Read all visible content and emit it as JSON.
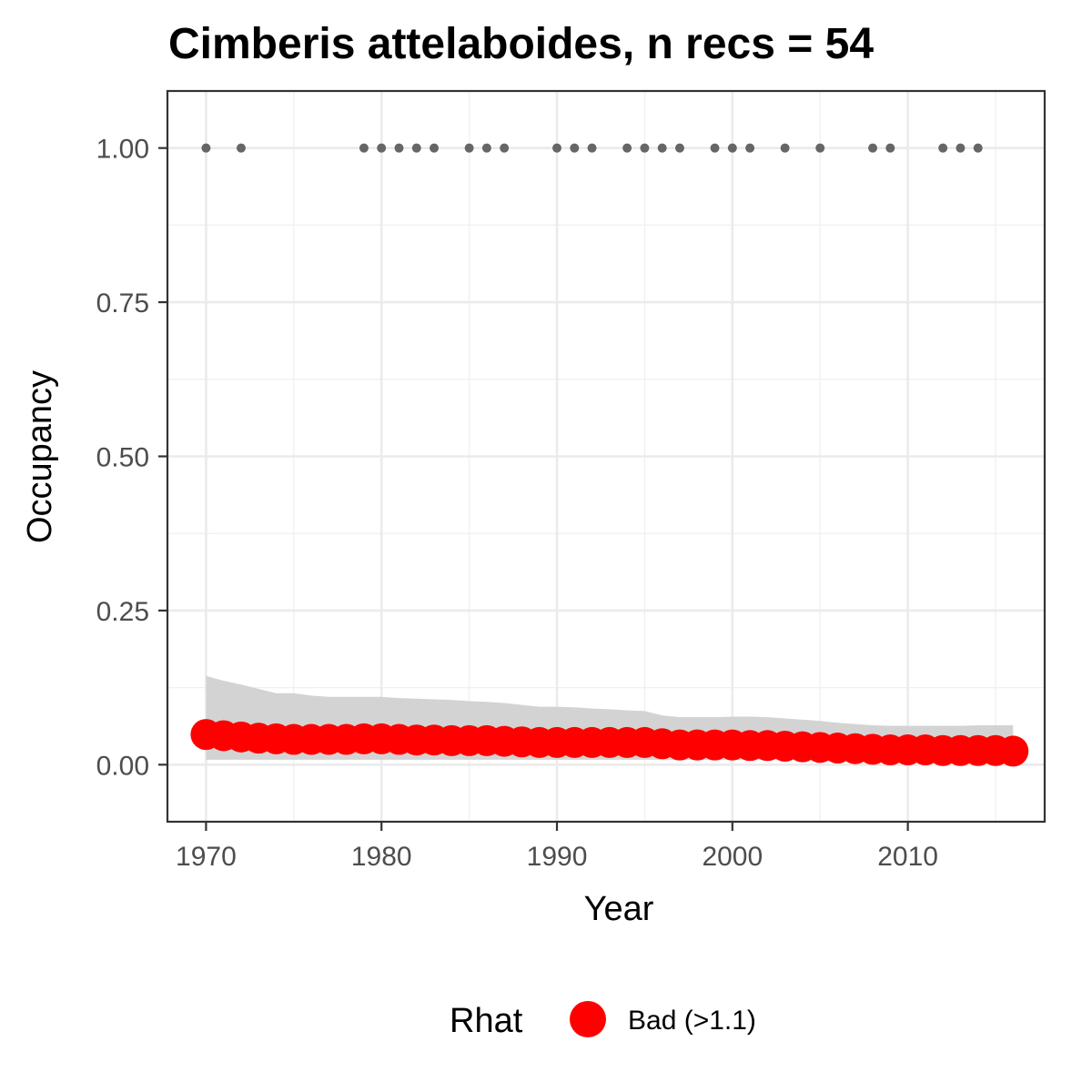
{
  "chart_data": {
    "type": "line",
    "title": "Cimberis attelaboides, n recs = 54",
    "xlabel": "Year",
    "ylabel": "Occupancy",
    "xlim": [
      1967.8,
      2017.8
    ],
    "ylim": [
      -0.0925,
      1.0925
    ],
    "x_ticks": [
      1970,
      1980,
      1990,
      2000,
      2010
    ],
    "x_tick_labels": [
      "1970",
      "1980",
      "1990",
      "2000",
      "2010"
    ],
    "y_ticks": [
      0,
      0.25,
      0.5,
      0.75,
      1
    ],
    "y_tick_labels": [
      "0.00",
      "0.25",
      "0.50",
      "0.75",
      "1.00"
    ],
    "grid": true,
    "ribbon_color": "#d3d3d3",
    "point_color": "#ff0000",
    "record_color": "#666666",
    "series": [
      {
        "role": "occupancy-mean",
        "x": [
          1970,
          1971,
          1972,
          1973,
          1974,
          1975,
          1976,
          1977,
          1978,
          1979,
          1980,
          1981,
          1982,
          1983,
          1984,
          1985,
          1986,
          1987,
          1988,
          1989,
          1990,
          1991,
          1992,
          1993,
          1994,
          1995,
          1996,
          1997,
          1998,
          1999,
          2000,
          2001,
          2002,
          2003,
          2004,
          2005,
          2006,
          2007,
          2008,
          2009,
          2010,
          2011,
          2012,
          2013,
          2014,
          2015,
          2016
        ],
        "y": [
          0.049,
          0.047,
          0.045,
          0.043,
          0.042,
          0.041,
          0.041,
          0.041,
          0.041,
          0.042,
          0.042,
          0.041,
          0.04,
          0.04,
          0.039,
          0.039,
          0.039,
          0.038,
          0.037,
          0.036,
          0.036,
          0.036,
          0.036,
          0.036,
          0.036,
          0.036,
          0.034,
          0.032,
          0.032,
          0.032,
          0.032,
          0.031,
          0.031,
          0.03,
          0.029,
          0.028,
          0.027,
          0.026,
          0.025,
          0.024,
          0.024,
          0.024,
          0.023,
          0.023,
          0.023,
          0.023,
          0.022
        ],
        "lower": [
          0.008,
          0.008,
          0.008,
          0.008,
          0.008,
          0.008,
          0.008,
          0.008,
          0.008,
          0.008,
          0.008,
          0.008,
          0.008,
          0.008,
          0.008,
          0.008,
          0.008,
          0.008,
          0.008,
          0.008,
          0.008,
          0.008,
          0.008,
          0.008,
          0.008,
          0.008,
          0.008,
          0.008,
          0.008,
          0.008,
          0.008,
          0.008,
          0.008,
          0.008,
          0.008,
          0.008,
          0.008,
          0.008,
          0.008,
          0.008,
          0.008,
          0.008,
          0.008,
          0.008,
          0.008,
          0.008,
          0.008
        ],
        "upper": [
          0.144,
          0.136,
          0.13,
          0.123,
          0.116,
          0.116,
          0.112,
          0.11,
          0.11,
          0.11,
          0.11,
          0.108,
          0.107,
          0.106,
          0.105,
          0.103,
          0.102,
          0.1,
          0.097,
          0.094,
          0.094,
          0.093,
          0.091,
          0.09,
          0.088,
          0.087,
          0.08,
          0.077,
          0.077,
          0.077,
          0.078,
          0.078,
          0.077,
          0.075,
          0.073,
          0.071,
          0.068,
          0.066,
          0.064,
          0.063,
          0.063,
          0.063,
          0.063,
          0.063,
          0.064,
          0.064,
          0.064
        ]
      },
      {
        "role": "records",
        "x": [
          1970,
          1972,
          1979,
          1980,
          1981,
          1982,
          1983,
          1985,
          1986,
          1987,
          1990,
          1991,
          1992,
          1994,
          1995,
          1996,
          1997,
          1999,
          2000,
          2001,
          2003,
          2005,
          2008,
          2009,
          2012,
          2013,
          2014
        ],
        "y": [
          1,
          1,
          1,
          1,
          1,
          1,
          1,
          1,
          1,
          1,
          1,
          1,
          1,
          1,
          1,
          1,
          1,
          1,
          1,
          1,
          1,
          1,
          1,
          1,
          1,
          1,
          1
        ]
      }
    ],
    "legend": {
      "title": "Rhat",
      "position": "bottom",
      "items": [
        {
          "label": "Bad (>1.1)",
          "color": "#ff0000"
        }
      ]
    }
  }
}
